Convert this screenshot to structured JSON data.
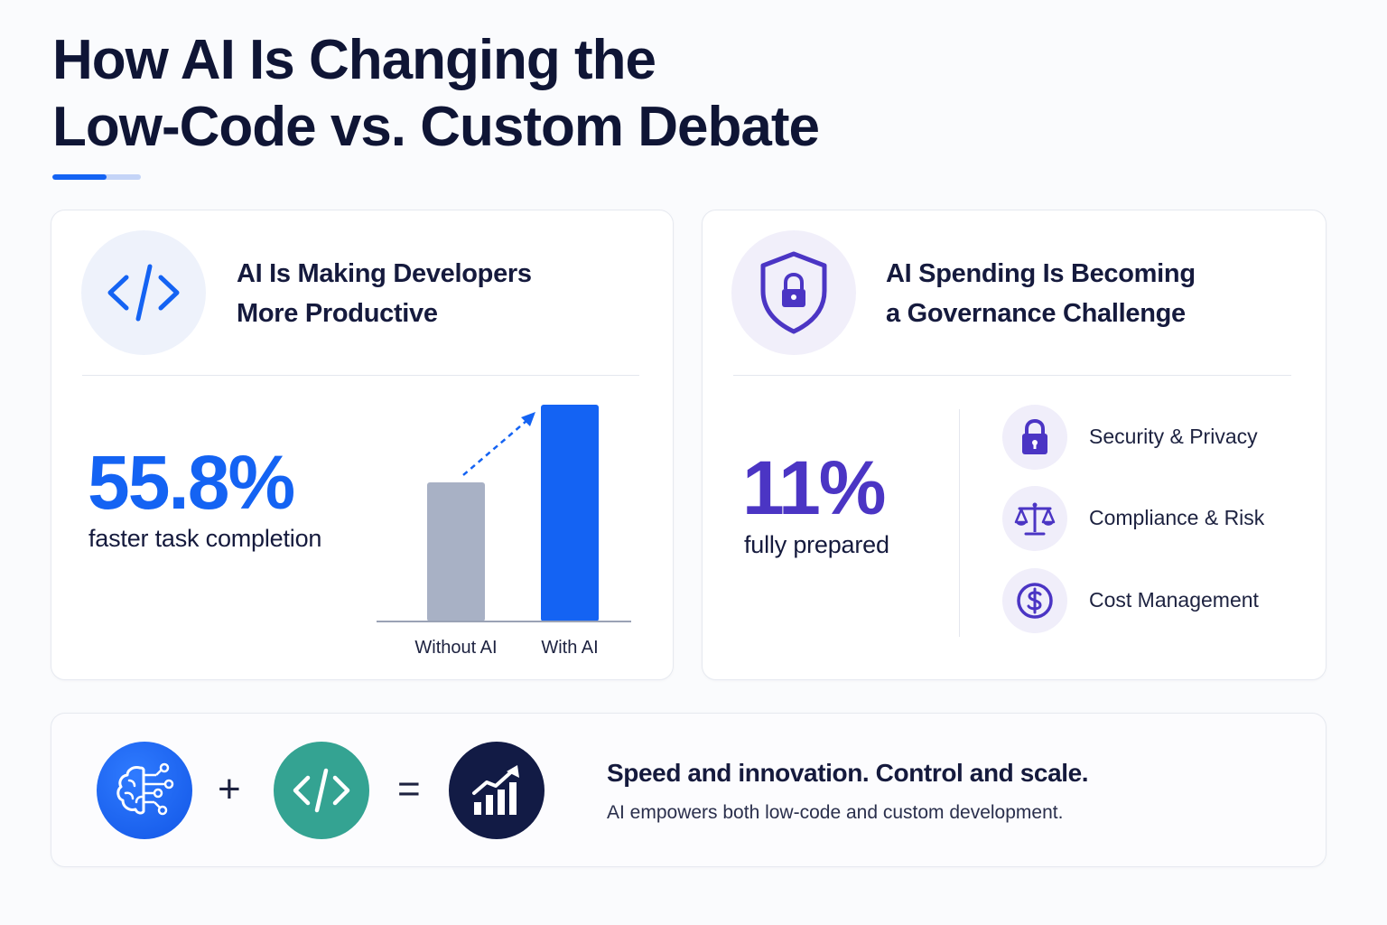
{
  "title": {
    "line1": "How AI Is Changing the",
    "line2": "Low-Code vs. Custom Debate"
  },
  "colors": {
    "primary_blue": "#1463f3",
    "purple": "#4b35c4",
    "teal": "#34a392",
    "navy": "#121b45",
    "gray_bar": "#a8b1c5"
  },
  "productivity": {
    "icon": "code-brackets-icon",
    "heading_line1": "AI Is Making Developers",
    "heading_line2": "More Productive",
    "stat": "55.8%",
    "caption": "faster task completion"
  },
  "chart_data": {
    "type": "bar",
    "categories": [
      "Without AI",
      "With AI"
    ],
    "values": [
      1.0,
      1.558
    ],
    "colors": [
      "#a8b1c5",
      "#1463f3"
    ],
    "annotation": "dashed upward arrow from Without AI to With AI",
    "title": "",
    "xlabel": "",
    "ylabel": ""
  },
  "governance": {
    "icon": "shield-lock-icon",
    "heading_line1": "AI Spending Is Becoming",
    "heading_line2": "a Governance Challenge",
    "stat": "11%",
    "caption": "fully prepared",
    "items": [
      {
        "icon": "lock-icon",
        "label": "Security & Privacy"
      },
      {
        "icon": "scales-icon",
        "label": "Compliance & Risk"
      },
      {
        "icon": "dollar-icon",
        "label": "Cost Management"
      }
    ]
  },
  "summary": {
    "icons": [
      "ai-brain-icon",
      "code-brackets-icon",
      "growth-chart-icon"
    ],
    "plus": "+",
    "equals": "=",
    "tagline": "Speed and innovation. Control and scale.",
    "subline": "AI empowers both low-code and custom development."
  }
}
